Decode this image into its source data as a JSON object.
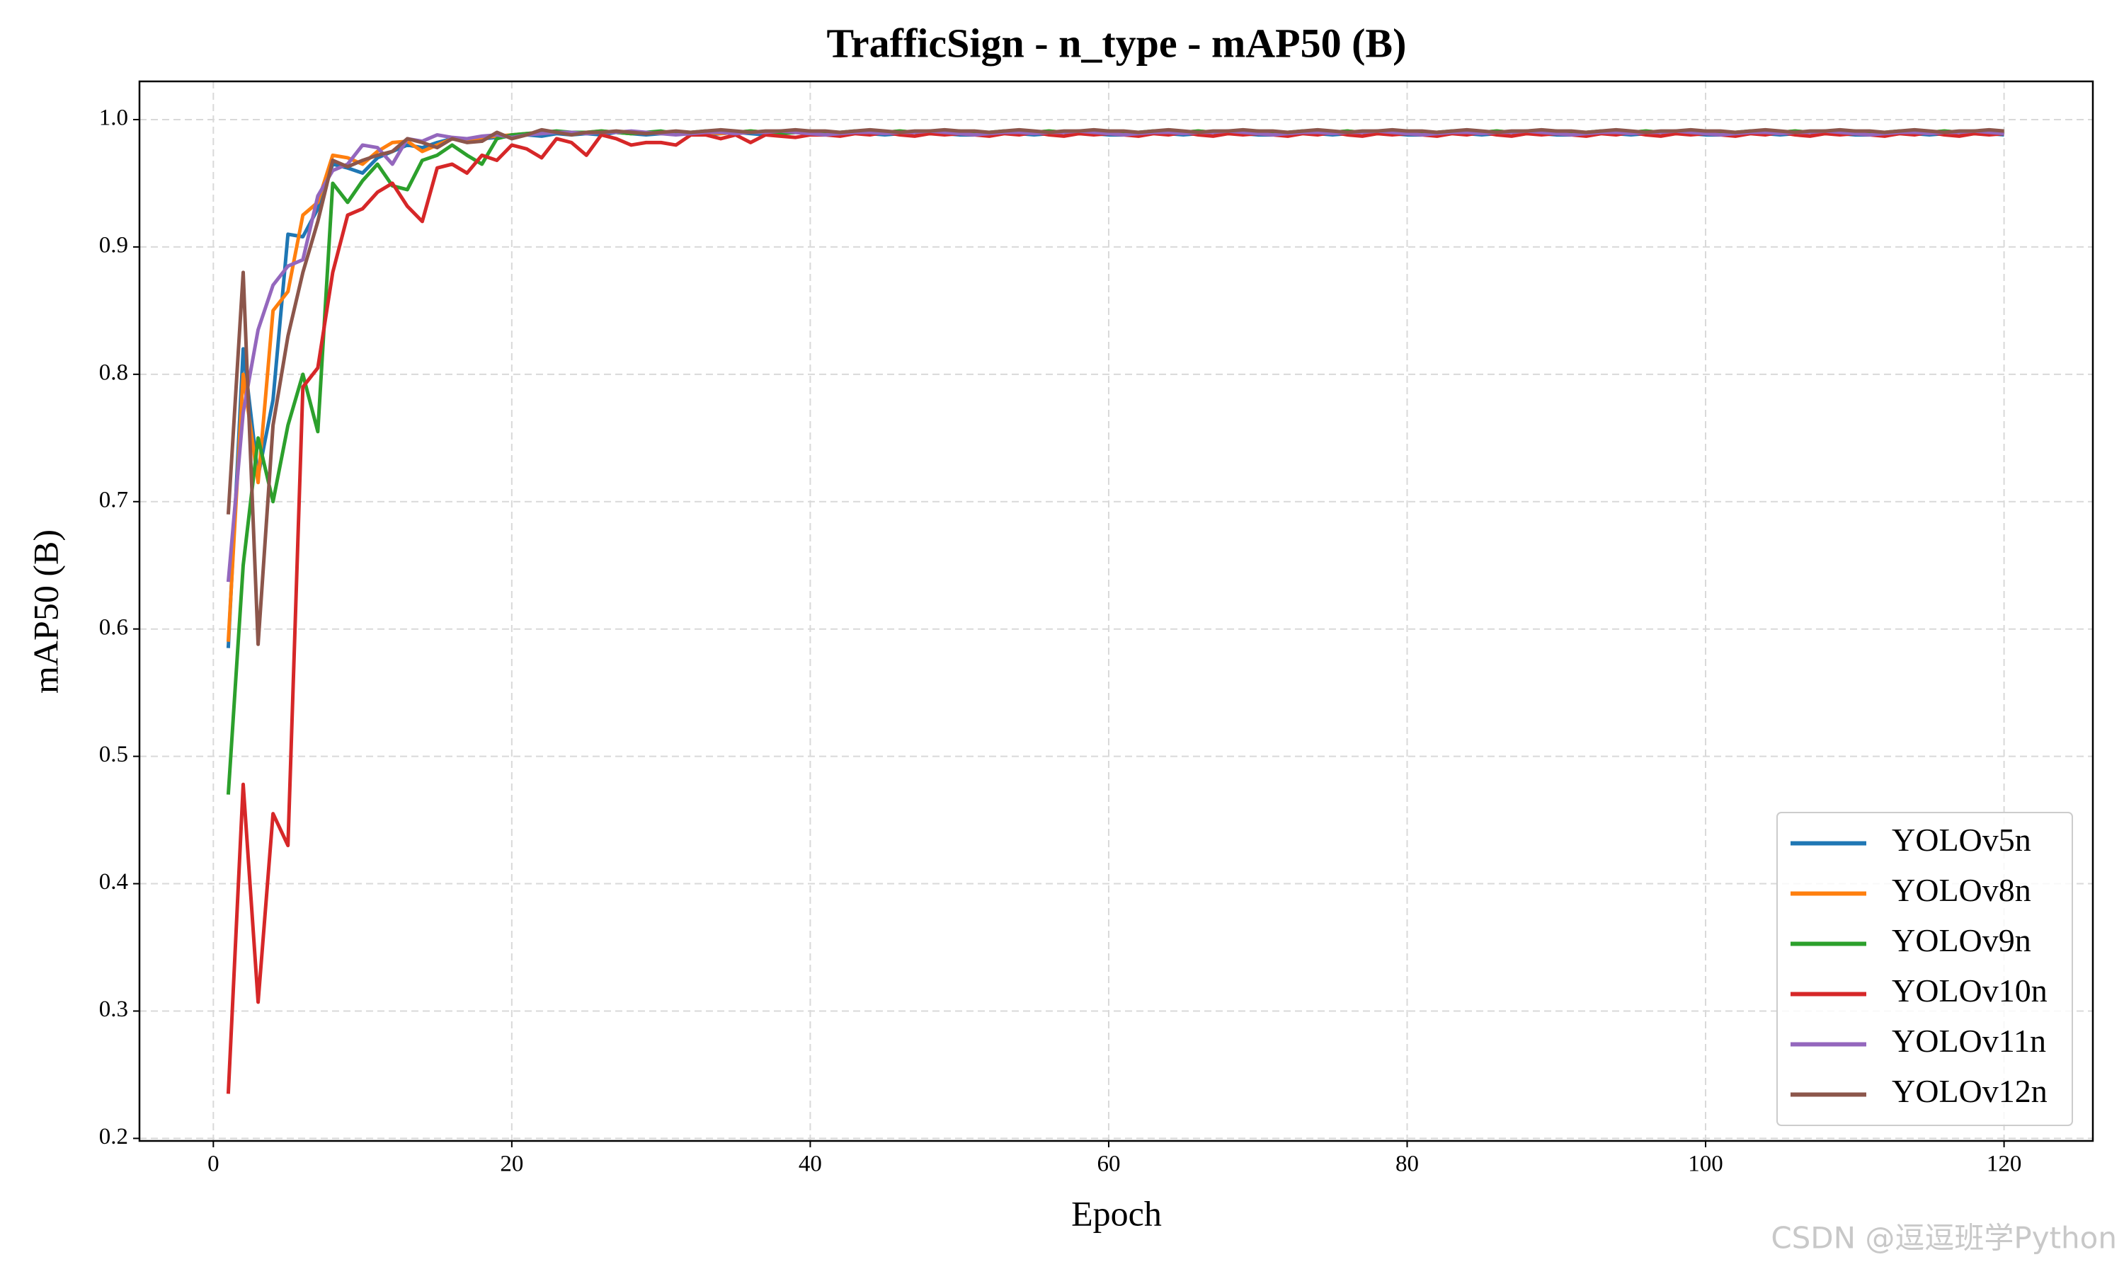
{
  "chart_data": {
    "type": "line",
    "title": "TrafficSign - n_type - mAP50 (B)",
    "xlabel": "Epoch",
    "ylabel": "mAP50 (B)",
    "watermark": "CSDN @逗逗班学Python",
    "xlim": [
      -4.95,
      125.95
    ],
    "xticks": [
      0,
      20,
      40,
      60,
      80,
      100,
      120
    ],
    "ylim": [
      0.198,
      1.03
    ],
    "yticks": [
      0.2,
      0.3,
      0.4,
      0.5,
      0.6,
      0.7,
      0.8,
      0.9,
      {
        "value": 1,
        "label": "1.0"
      }
    ],
    "grid": true,
    "legend": "lower right",
    "x": [
      1,
      2,
      3,
      4,
      5,
      6,
      7,
      8,
      9,
      10,
      11,
      12,
      13,
      14,
      15,
      16,
      17,
      18,
      19,
      20,
      21,
      22,
      23,
      24,
      25,
      26,
      27,
      28,
      29,
      30,
      31,
      32,
      33,
      34,
      35,
      36,
      37,
      38,
      39,
      40,
      41,
      42,
      43,
      44,
      45,
      46,
      47,
      48,
      49,
      50,
      51,
      52,
      53,
      54,
      55,
      56,
      57,
      58,
      59,
      60,
      61,
      62,
      63,
      64,
      65,
      66,
      67,
      68,
      69,
      70,
      71,
      72,
      73,
      74,
      75,
      76,
      77,
      78,
      79,
      80,
      81,
      82,
      83,
      84,
      85,
      86,
      87,
      88,
      89,
      90,
      91,
      92,
      93,
      94,
      95,
      96,
      97,
      98,
      99,
      100,
      101,
      102,
      103,
      104,
      105,
      106,
      107,
      108,
      109,
      110,
      111,
      112,
      113,
      114,
      115,
      116,
      117,
      118,
      119,
      120
    ],
    "series": [
      {
        "name": "YOLOv5n",
        "color": "#1f77b4",
        "values": [
          0.585,
          0.82,
          0.72,
          0.78,
          0.91,
          0.908,
          0.93,
          0.965,
          0.962,
          0.958,
          0.97,
          0.975,
          0.98,
          0.978,
          0.982,
          0.985,
          0.984,
          0.985,
          0.986,
          0.987,
          0.988,
          0.987,
          0.989,
          0.988,
          0.989,
          0.988,
          0.99,
          0.989,
          0.988,
          0.989,
          0.989,
          0.99,
          0.988,
          0.989,
          0.99,
          0.989,
          0.988,
          0.989,
          0.99,
          0.989,
          0.988,
          0.989,
          0.99,
          0.989,
          0.988,
          0.989,
          0.99,
          0.989,
          0.989,
          0.988,
          0.988,
          0.989,
          0.99,
          0.989,
          0.988,
          0.989,
          0.99,
          0.989,
          0.989,
          0.988,
          0.988,
          0.989,
          0.99,
          0.989,
          0.988,
          0.989,
          0.99,
          0.989,
          0.989,
          0.988,
          0.988,
          0.989,
          0.99,
          0.989,
          0.988,
          0.989,
          0.99,
          0.989,
          0.989,
          0.988,
          0.988,
          0.989,
          0.99,
          0.989,
          0.988,
          0.989,
          0.99,
          0.989,
          0.989,
          0.988,
          0.988,
          0.989,
          0.99,
          0.989,
          0.988,
          0.989,
          0.99,
          0.989,
          0.989,
          0.988,
          0.988,
          0.989,
          0.99,
          0.989,
          0.988,
          0.989,
          0.99,
          0.989,
          0.989,
          0.988,
          0.988,
          0.989,
          0.99,
          0.989,
          0.988,
          0.989,
          0.99,
          0.989,
          0.989,
          0.988
        ]
      },
      {
        "name": "YOLOv8n",
        "color": "#ff7f0e",
        "values": [
          0.59,
          0.8,
          0.715,
          0.85,
          0.865,
          0.925,
          0.935,
          0.972,
          0.97,
          0.965,
          0.975,
          0.982,
          0.983,
          0.975,
          0.98,
          0.985,
          0.984,
          0.986,
          0.987,
          0.988,
          0.989,
          0.99,
          0.99,
          0.989,
          0.99,
          0.991,
          0.99,
          0.989,
          0.99,
          0.99,
          0.989,
          0.99,
          0.99,
          0.989,
          0.99,
          0.991,
          0.99,
          0.989,
          0.99,
          0.99,
          0.989,
          0.99,
          0.99,
          0.989,
          0.99,
          0.991,
          0.99,
          0.989,
          0.99,
          0.99,
          0.989,
          0.99,
          0.99,
          0.989,
          0.99,
          0.991,
          0.99,
          0.989,
          0.99,
          0.99,
          0.989,
          0.99,
          0.99,
          0.989,
          0.99,
          0.991,
          0.99,
          0.989,
          0.99,
          0.99,
          0.989,
          0.99,
          0.99,
          0.989,
          0.99,
          0.991,
          0.99,
          0.989,
          0.99,
          0.99,
          0.989,
          0.99,
          0.99,
          0.989,
          0.99,
          0.991,
          0.99,
          0.989,
          0.99,
          0.99,
          0.989,
          0.99,
          0.99,
          0.989,
          0.99,
          0.991,
          0.99,
          0.989,
          0.99,
          0.99,
          0.989,
          0.99,
          0.99,
          0.989,
          0.99,
          0.991,
          0.99,
          0.989,
          0.99,
          0.99,
          0.989,
          0.99,
          0.99,
          0.989,
          0.99,
          0.991,
          0.99,
          0.989,
          0.99,
          0.99
        ]
      },
      {
        "name": "YOLOv9n",
        "color": "#2ca02c",
        "values": [
          0.47,
          0.65,
          0.75,
          0.7,
          0.76,
          0.8,
          0.755,
          0.95,
          0.935,
          0.952,
          0.965,
          0.948,
          0.945,
          0.968,
          0.972,
          0.98,
          0.972,
          0.965,
          0.985,
          0.988,
          0.989,
          0.99,
          0.991,
          0.99,
          0.99,
          0.991,
          0.99,
          0.989,
          0.99,
          0.991,
          0.989,
          0.99,
          0.991,
          0.99,
          0.99,
          0.991,
          0.99,
          0.989,
          0.99,
          0.991,
          0.989,
          0.99,
          0.991,
          0.99,
          0.99,
          0.991,
          0.99,
          0.989,
          0.99,
          0.991,
          0.989,
          0.99,
          0.991,
          0.99,
          0.99,
          0.991,
          0.99,
          0.989,
          0.99,
          0.991,
          0.989,
          0.99,
          0.991,
          0.99,
          0.99,
          0.991,
          0.99,
          0.989,
          0.99,
          0.991,
          0.989,
          0.99,
          0.991,
          0.99,
          0.99,
          0.991,
          0.99,
          0.989,
          0.99,
          0.991,
          0.989,
          0.99,
          0.991,
          0.99,
          0.99,
          0.991,
          0.99,
          0.989,
          0.99,
          0.991,
          0.989,
          0.99,
          0.991,
          0.99,
          0.99,
          0.991,
          0.99,
          0.989,
          0.99,
          0.991,
          0.989,
          0.99,
          0.991,
          0.99,
          0.99,
          0.991,
          0.99,
          0.989,
          0.99,
          0.991,
          0.989,
          0.99,
          0.991,
          0.99,
          0.99,
          0.991,
          0.99,
          0.989,
          0.99,
          0.991
        ]
      },
      {
        "name": "YOLOv10n",
        "color": "#d62728",
        "values": [
          0.235,
          0.478,
          0.307,
          0.455,
          0.43,
          0.79,
          0.805,
          0.88,
          0.925,
          0.93,
          0.943,
          0.95,
          0.932,
          0.92,
          0.962,
          0.965,
          0.958,
          0.972,
          0.968,
          0.98,
          0.977,
          0.97,
          0.985,
          0.982,
          0.972,
          0.988,
          0.985,
          0.98,
          0.982,
          0.982,
          0.98,
          0.988,
          0.988,
          0.985,
          0.988,
          0.982,
          0.988,
          0.987,
          0.986,
          0.988,
          0.988,
          0.987,
          0.989,
          0.988,
          0.99,
          0.988,
          0.987,
          0.989,
          0.988,
          0.989,
          0.988,
          0.987,
          0.989,
          0.988,
          0.99,
          0.988,
          0.987,
          0.989,
          0.988,
          0.989,
          0.988,
          0.987,
          0.989,
          0.988,
          0.99,
          0.988,
          0.987,
          0.989,
          0.988,
          0.989,
          0.988,
          0.987,
          0.989,
          0.988,
          0.99,
          0.988,
          0.987,
          0.989,
          0.988,
          0.989,
          0.988,
          0.987,
          0.989,
          0.988,
          0.99,
          0.988,
          0.987,
          0.989,
          0.988,
          0.989,
          0.988,
          0.987,
          0.989,
          0.988,
          0.99,
          0.988,
          0.987,
          0.989,
          0.988,
          0.989,
          0.988,
          0.987,
          0.989,
          0.988,
          0.99,
          0.988,
          0.987,
          0.989,
          0.988,
          0.989,
          0.988,
          0.987,
          0.989,
          0.988,
          0.99,
          0.988,
          0.987,
          0.989,
          0.988,
          0.989
        ]
      },
      {
        "name": "YOLOv11n",
        "color": "#9467bd",
        "values": [
          0.637,
          0.77,
          0.835,
          0.87,
          0.885,
          0.89,
          0.94,
          0.96,
          0.965,
          0.98,
          0.978,
          0.965,
          0.985,
          0.983,
          0.988,
          0.986,
          0.985,
          0.987,
          0.988,
          0.986,
          0.988,
          0.989,
          0.99,
          0.99,
          0.989,
          0.99,
          0.99,
          0.991,
          0.99,
          0.989,
          0.988,
          0.989,
          0.99,
          0.99,
          0.989,
          0.99,
          0.99,
          0.991,
          0.99,
          0.989,
          0.988,
          0.989,
          0.99,
          0.99,
          0.989,
          0.99,
          0.99,
          0.991,
          0.99,
          0.989,
          0.988,
          0.989,
          0.99,
          0.99,
          0.989,
          0.99,
          0.99,
          0.991,
          0.99,
          0.989,
          0.988,
          0.989,
          0.99,
          0.99,
          0.989,
          0.99,
          0.99,
          0.991,
          0.99,
          0.989,
          0.988,
          0.989,
          0.99,
          0.99,
          0.989,
          0.99,
          0.99,
          0.991,
          0.99,
          0.989,
          0.988,
          0.989,
          0.99,
          0.99,
          0.989,
          0.99,
          0.99,
          0.991,
          0.99,
          0.989,
          0.988,
          0.989,
          0.99,
          0.99,
          0.989,
          0.99,
          0.99,
          0.991,
          0.99,
          0.989,
          0.988,
          0.989,
          0.99,
          0.99,
          0.989,
          0.99,
          0.99,
          0.991,
          0.99,
          0.989,
          0.988,
          0.989,
          0.99,
          0.99,
          0.989,
          0.99,
          0.99,
          0.991,
          0.99,
          0.989
        ]
      },
      {
        "name": "YOLOv12n",
        "color": "#8c564b",
        "values": [
          0.69,
          0.88,
          0.588,
          0.76,
          0.83,
          0.88,
          0.92,
          0.968,
          0.963,
          0.968,
          0.972,
          0.975,
          0.985,
          0.982,
          0.978,
          0.985,
          0.982,
          0.983,
          0.99,
          0.985,
          0.988,
          0.992,
          0.99,
          0.988,
          0.99,
          0.99,
          0.991,
          0.99,
          0.989,
          0.99,
          0.991,
          0.99,
          0.991,
          0.992,
          0.991,
          0.99,
          0.991,
          0.991,
          0.992,
          0.991,
          0.991,
          0.99,
          0.991,
          0.992,
          0.991,
          0.99,
          0.991,
          0.991,
          0.992,
          0.991,
          0.991,
          0.99,
          0.991,
          0.992,
          0.991,
          0.99,
          0.991,
          0.991,
          0.992,
          0.991,
          0.991,
          0.99,
          0.991,
          0.992,
          0.991,
          0.99,
          0.991,
          0.991,
          0.992,
          0.991,
          0.991,
          0.99,
          0.991,
          0.992,
          0.991,
          0.99,
          0.991,
          0.991,
          0.992,
          0.991,
          0.991,
          0.99,
          0.991,
          0.992,
          0.991,
          0.99,
          0.991,
          0.991,
          0.992,
          0.991,
          0.991,
          0.99,
          0.991,
          0.992,
          0.991,
          0.99,
          0.991,
          0.991,
          0.992,
          0.991,
          0.991,
          0.99,
          0.991,
          0.992,
          0.991,
          0.99,
          0.991,
          0.991,
          0.992,
          0.991,
          0.991,
          0.99,
          0.991,
          0.992,
          0.991,
          0.99,
          0.991,
          0.991,
          0.992,
          0.991
        ]
      }
    ]
  }
}
